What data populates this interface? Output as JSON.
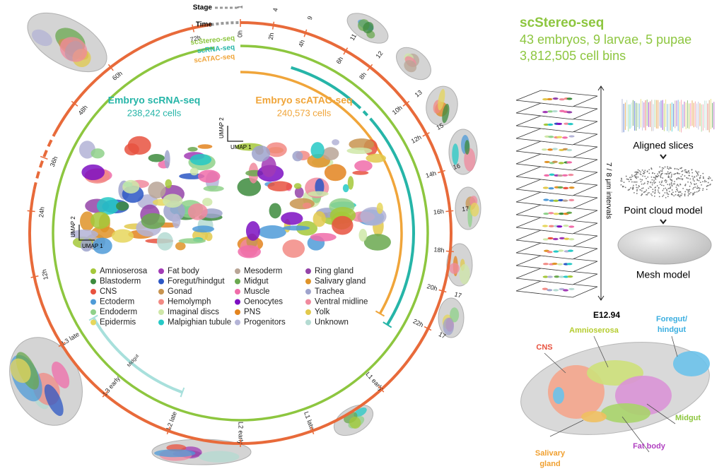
{
  "circle": {
    "stage_label": "Stage",
    "time_label": "Time",
    "stages": [
      "1",
      "4",
      "9",
      "11",
      "12",
      "13",
      "15",
      "16",
      "17",
      "17",
      "17"
    ],
    "embryo_times": [
      "0h",
      "2h",
      "4h",
      "6h",
      "8h",
      "10h",
      "12h",
      "14h",
      "16h",
      "18h",
      "20h",
      "22h"
    ],
    "larval_stages": [
      "L1 early",
      "L1 late",
      "L2 early",
      "L2 late",
      "L3 early",
      "L3 late"
    ],
    "pupal_times": [
      "12h",
      "24h",
      "36h",
      "48h",
      "60h",
      "72h"
    ],
    "tracks": [
      {
        "name": "scStereo-seq",
        "color": "#8dc63f"
      },
      {
        "name": "scRNA-seq",
        "color": "#26b5a8"
      },
      {
        "name": "scATAC-seq",
        "color": "#f0a53a"
      }
    ],
    "midgut_label": "Midgut"
  },
  "umaps": [
    {
      "title": "Embryo scRNA-seq",
      "cells": "238,242 cells",
      "color": "#26b5a8",
      "x_axis": "UMAP 1",
      "y_axis": "UMAP 2"
    },
    {
      "title": "Embryo scATAC-seq",
      "cells": "240,573 cells",
      "color": "#f0a53a",
      "x_axis": "UMAP 1",
      "y_axis": "UMAP 2"
    }
  ],
  "legend": [
    {
      "label": "Amnioserosa",
      "color": "#a5c83a"
    },
    {
      "label": "Blastoderm",
      "color": "#3d8b3d"
    },
    {
      "label": "CNS",
      "color": "#e8523f"
    },
    {
      "label": "Ectoderm",
      "color": "#4f9bd8"
    },
    {
      "label": "Endoderm",
      "color": "#8fd18a"
    },
    {
      "label": "Epidermis",
      "color": "#e6d65c"
    },
    {
      "label": "Fat body",
      "color": "#a23bb5"
    },
    {
      "label": "Foregut/hindgut",
      "color": "#2c57c4"
    },
    {
      "label": "Gonad",
      "color": "#c8944f"
    },
    {
      "label": "Hemolymph",
      "color": "#f28a84"
    },
    {
      "label": "Imaginal discs",
      "color": "#cfe7a8"
    },
    {
      "label": "Malpighian tubule",
      "color": "#26c9c6"
    },
    {
      "label": "Mesoderm",
      "color": "#b9a596"
    },
    {
      "label": "Midgut",
      "color": "#6aa84f"
    },
    {
      "label": "Muscle",
      "color": "#f06ca9"
    },
    {
      "label": "Oenocytes",
      "color": "#7d0fc2"
    },
    {
      "label": "PNS",
      "color": "#e3841f"
    },
    {
      "label": "Progenitors",
      "color": "#b3b3d6"
    },
    {
      "label": "Ring gland",
      "color": "#9444a8"
    },
    {
      "label": "Salivary gland",
      "color": "#df9328"
    },
    {
      "label": "Trachea",
      "color": "#9ea3cc"
    },
    {
      "label": "Ventral midline",
      "color": "#f08a9e"
    },
    {
      "label": "Yolk",
      "color": "#e2c94c"
    },
    {
      "label": "Unknown",
      "color": "#b4dbd2"
    }
  ],
  "stereo": {
    "title": "scStereo-seq",
    "samples": "43 embryos, 9 larvae, 5 pupae",
    "bins": "3,812,505 cell bins",
    "interval": "7 / 8 μm intervals",
    "steps": [
      "Aligned slices",
      "Point cloud model",
      "Mesh model"
    ]
  },
  "model": {
    "stage": "E12.94",
    "labels": [
      {
        "lines": [
          "CNS"
        ],
        "color": "#e8523f"
      },
      {
        "lines": [
          "Amnioserosa"
        ],
        "color": "#b5cc2e"
      },
      {
        "lines": [
          "Foregut/",
          "hindgut"
        ],
        "color": "#3aaee0"
      },
      {
        "lines": [
          "Midgut"
        ],
        "color": "#8dc63f"
      },
      {
        "lines": [
          "Fat body"
        ],
        "color": "#b040c0"
      },
      {
        "lines": [
          "Salivary",
          "gland"
        ],
        "color": "#f0a030"
      }
    ]
  }
}
